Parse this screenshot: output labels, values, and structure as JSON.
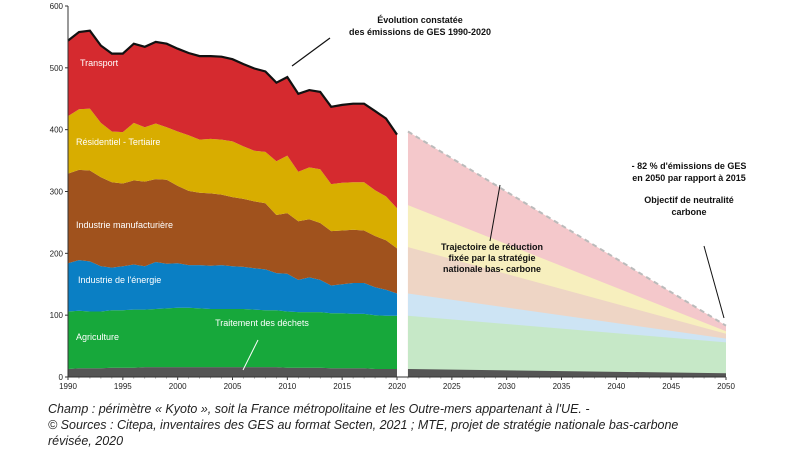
{
  "chart_data": {
    "type": "area",
    "ylim": [
      0,
      600
    ],
    "xlim": [
      1990,
      2050
    ],
    "x_ticks": [
      "1990",
      "1995",
      "2000",
      "2005",
      "2010",
      "2015",
      "2020",
      "2025",
      "2030",
      "2035",
      "2040",
      "2045",
      "2050"
    ],
    "y_ticks": [
      "0",
      "100",
      "200",
      "300",
      "400",
      "500",
      "600"
    ],
    "grid": false,
    "x": [
      1990,
      1991,
      1992,
      1993,
      1994,
      1995,
      1996,
      1997,
      1998,
      1999,
      2000,
      2001,
      2002,
      2003,
      2004,
      2005,
      2006,
      2007,
      2008,
      2009,
      2010,
      2011,
      2012,
      2013,
      2014,
      2015,
      2016,
      2017,
      2018,
      2019,
      2020
    ],
    "series": [
      {
        "name": "Traitement des déchets",
        "color": "#555555",
        "values": [
          13,
          14,
          14,
          14,
          15,
          15,
          15,
          16,
          16,
          16,
          16,
          16,
          16,
          16,
          16,
          16,
          16,
          16,
          16,
          16,
          15,
          15,
          15,
          15,
          14,
          14,
          14,
          14,
          13,
          13,
          13
        ]
      },
      {
        "name": "Agriculture",
        "color": "#17a83b",
        "values": [
          93,
          93,
          92,
          92,
          93,
          93,
          94,
          93,
          94,
          95,
          96,
          96,
          95,
          94,
          94,
          94,
          94,
          93,
          92,
          92,
          91,
          90,
          90,
          90,
          89,
          89,
          88,
          88,
          87,
          86,
          86
        ]
      },
      {
        "name": "Industrie de l'énergie",
        "color": "#0a7fc4",
        "values": [
          78,
          82,
          81,
          73,
          69,
          71,
          73,
          70,
          76,
          72,
          72,
          69,
          70,
          70,
          71,
          69,
          68,
          67,
          66,
          60,
          61,
          52,
          56,
          52,
          45,
          47,
          50,
          50,
          45,
          42,
          36
        ]
      },
      {
        "name": "Industrie manufacturière",
        "color": "#a0521d",
        "values": [
          145,
          146,
          147,
          144,
          138,
          134,
          136,
          137,
          134,
          136,
          125,
          120,
          117,
          117,
          114,
          112,
          110,
          108,
          107,
          94,
          98,
          95,
          94,
          92,
          88,
          87,
          86,
          85,
          83,
          80,
          73
        ]
      },
      {
        "name": "Résidentiel - Tertiaire",
        "color": "#d8ad00",
        "values": [
          93,
          98,
          100,
          88,
          82,
          83,
          93,
          88,
          90,
          85,
          88,
          90,
          86,
          88,
          89,
          90,
          85,
          82,
          83,
          87,
          93,
          80,
          84,
          87,
          76,
          77,
          77,
          78,
          74,
          71,
          65
        ]
      },
      {
        "name": "Transport",
        "color": "#d52a2f",
        "values": [
          122,
          125,
          126,
          125,
          126,
          127,
          128,
          130,
          132,
          135,
          134,
          133,
          135,
          134,
          134,
          133,
          133,
          133,
          130,
          127,
          127,
          126,
          125,
          125,
          125,
          126,
          127,
          127,
          128,
          126,
          119
        ]
      }
    ],
    "projection": {
      "x": [
        2021,
        2050
      ],
      "stacked_top": [
        397,
        83
      ],
      "bands": [
        {
          "color": "#555555",
          "top": [
            13,
            6
          ]
        },
        {
          "color": "#c6e8c7",
          "top": [
            99,
            56
          ]
        },
        {
          "color": "#cde4f4",
          "top": [
            135,
            62
          ]
        },
        {
          "color": "#eed5c5",
          "top": [
            210,
            70
          ]
        },
        {
          "color": "#f7efbe",
          "top": [
            278,
            74
          ]
        },
        {
          "color": "#f4c8cb",
          "top": [
            397,
            83
          ]
        }
      ],
      "dashed_color": "#bbbbbb"
    },
    "labels": {
      "transport": "Transport",
      "residentiel": "Résidentiel - Tertiaire",
      "industrie_manu": "Industrie manufacturière",
      "industrie_energie": "Industrie de l'énergie",
      "agriculture": "Agriculture",
      "dechets": "Traitement des déchets"
    },
    "annotations": {
      "evolution_line1": "Évolution constatée",
      "evolution_line2": "des émissions de GES 1990-2020",
      "trajectoire_line1": "Trajectoire de réduction",
      "trajectoire_line2": "fixée par la stratégie",
      "trajectoire_line3": "nationale bas- carbone",
      "objectif82_line1": "- 82 % d'émissions de GES",
      "objectif82_line2": "en 2050 par rapport à 2015",
      "neutralite_line1": "Objectif de neutralité",
      "neutralite_line2": "carbone"
    }
  },
  "caption": {
    "line1": "Champ : périmètre « Kyoto », soit la France métropolitaine et les Outre-mers appartenant à l'UE. -",
    "line2": "© Sources : Citepa, inventaires des GES au format Secten, 2021 ; MTE, projet de stratégie nationale bas-carbone",
    "line3": "révisée, 2020"
  }
}
